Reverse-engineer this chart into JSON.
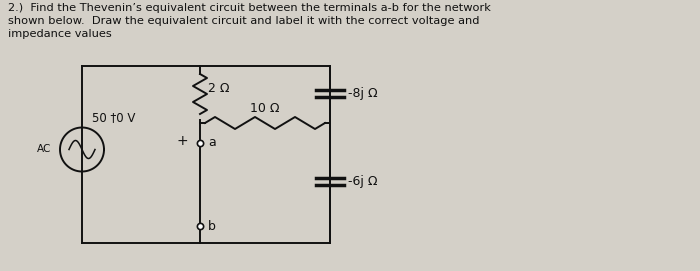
{
  "title_line1": "2.)  Find the Thevenin’s equivalent circuit between the terminals a-b for the network",
  "title_line2": "shown below.  Draw the equivalent circuit and label it with the correct voltage and",
  "title_line3": "impedance values",
  "bg_color": "#d4d0c8",
  "text_color": "#111111",
  "source_label": "50 †0 V",
  "ac_label": "AC",
  "r1_label": "2 Ω",
  "r2_label": "10 Ω",
  "c1_label": "-8j Ω",
  "c2_label": "-6j Ω"
}
